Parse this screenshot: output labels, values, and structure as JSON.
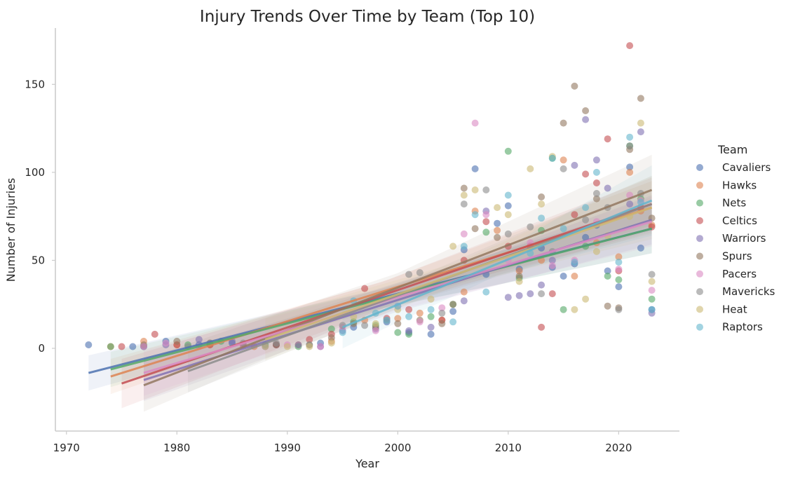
{
  "chart_data": {
    "type": "scatter",
    "title": "Injury Trends Over Time by Team (Top 10)",
    "xlabel": "Year",
    "ylabel": "Number of Injuries",
    "xlim": [
      1969,
      2025.5
    ],
    "ylim": [
      -47,
      182
    ],
    "x_ticks": [
      1970,
      1980,
      1990,
      2000,
      2010,
      2020
    ],
    "y_ticks": [
      0,
      50,
      100,
      150
    ],
    "grid": false,
    "legend_title": "Team",
    "legend_placement": "right",
    "series": [
      {
        "name": "Cavaliers",
        "color": "#4c72b0",
        "fit": {
          "x": [
            1972,
            2023
          ],
          "y": [
            -14,
            68
          ],
          "ci": [
            10,
            14
          ]
        },
        "points": [
          [
            1972,
            2
          ],
          [
            1976,
            1
          ],
          [
            1979,
            4
          ],
          [
            1982,
            2
          ],
          [
            1985,
            3
          ],
          [
            1989,
            2
          ],
          [
            1993,
            3
          ],
          [
            1996,
            12
          ],
          [
            1999,
            15
          ],
          [
            2001,
            9
          ],
          [
            2003,
            8
          ],
          [
            2005,
            21
          ],
          [
            2006,
            56
          ],
          [
            2007,
            102
          ],
          [
            2008,
            42
          ],
          [
            2009,
            71
          ],
          [
            2010,
            81
          ],
          [
            2011,
            45
          ],
          [
            2013,
            57
          ],
          [
            2014,
            46
          ],
          [
            2015,
            41
          ],
          [
            2016,
            48
          ],
          [
            2017,
            63
          ],
          [
            2018,
            70
          ],
          [
            2019,
            44
          ],
          [
            2020,
            35
          ],
          [
            2021,
            103
          ],
          [
            2022,
            57
          ],
          [
            2023,
            22
          ]
        ]
      },
      {
        "name": "Hawks",
        "color": "#dd8452",
        "fit": {
          "x": [
            1974,
            2023
          ],
          "y": [
            -16,
            80
          ],
          "ci": [
            10,
            15
          ]
        },
        "points": [
          [
            1974,
            1
          ],
          [
            1977,
            4
          ],
          [
            1980,
            2
          ],
          [
            1983,
            2
          ],
          [
            1987,
            1
          ],
          [
            1991,
            2
          ],
          [
            1994,
            4
          ],
          [
            1997,
            16
          ],
          [
            2000,
            17
          ],
          [
            2002,
            20
          ],
          [
            2004,
            16
          ],
          [
            2006,
            32
          ],
          [
            2007,
            78
          ],
          [
            2009,
            67
          ],
          [
            2011,
            44
          ],
          [
            2013,
            50
          ],
          [
            2015,
            107
          ],
          [
            2016,
            41
          ],
          [
            2018,
            60
          ],
          [
            2020,
            52
          ],
          [
            2021,
            100
          ],
          [
            2022,
            78
          ],
          [
            2023,
            70
          ]
        ]
      },
      {
        "name": "Nets",
        "color": "#55a868",
        "fit": {
          "x": [
            1974,
            2023
          ],
          "y": [
            -12,
            68
          ],
          "ci": [
            10,
            14
          ]
        },
        "points": [
          [
            1974,
            1
          ],
          [
            1977,
            1
          ],
          [
            1981,
            2
          ],
          [
            1984,
            4
          ],
          [
            1988,
            2
          ],
          [
            1991,
            1
          ],
          [
            1994,
            11
          ],
          [
            1996,
            15
          ],
          [
            1998,
            13
          ],
          [
            2000,
            9
          ],
          [
            2001,
            8
          ],
          [
            2003,
            18
          ],
          [
            2005,
            25
          ],
          [
            2008,
            66
          ],
          [
            2010,
            112
          ],
          [
            2011,
            40
          ],
          [
            2013,
            67
          ],
          [
            2014,
            108
          ],
          [
            2015,
            22
          ],
          [
            2017,
            58
          ],
          [
            2019,
            41
          ],
          [
            2020,
            39
          ],
          [
            2021,
            115
          ],
          [
            2022,
            85
          ],
          [
            2023,
            28
          ]
        ]
      },
      {
        "name": "Celtics",
        "color": "#c44e52",
        "fit": {
          "x": [
            1975,
            2023
          ],
          "y": [
            -20,
            82
          ],
          "ci": [
            14,
            15
          ]
        },
        "points": [
          [
            1975,
            1
          ],
          [
            1978,
            8
          ],
          [
            1980,
            2
          ],
          [
            1983,
            2
          ],
          [
            1986,
            2
          ],
          [
            1989,
            2
          ],
          [
            1992,
            5
          ],
          [
            1994,
            8
          ],
          [
            1997,
            34
          ],
          [
            1999,
            17
          ],
          [
            2001,
            22
          ],
          [
            2004,
            16
          ],
          [
            2006,
            50
          ],
          [
            2008,
            72
          ],
          [
            2010,
            58
          ],
          [
            2012,
            58
          ],
          [
            2013,
            12
          ],
          [
            2014,
            31
          ],
          [
            2016,
            76
          ],
          [
            2017,
            99
          ],
          [
            2018,
            94
          ],
          [
            2019,
            119
          ],
          [
            2020,
            44
          ],
          [
            2021,
            172
          ],
          [
            2022,
            80
          ],
          [
            2023,
            69
          ]
        ]
      },
      {
        "name": "Warriors",
        "color": "#8172b3",
        "fit": {
          "x": [
            1977,
            2023
          ],
          "y": [
            -18,
            73
          ],
          "ci": [
            12,
            14
          ]
        },
        "points": [
          [
            1977,
            1
          ],
          [
            1979,
            2
          ],
          [
            1982,
            5
          ],
          [
            1985,
            4
          ],
          [
            1988,
            1
          ],
          [
            1991,
            2
          ],
          [
            1993,
            1
          ],
          [
            1995,
            10
          ],
          [
            1998,
            11
          ],
          [
            2001,
            10
          ],
          [
            2003,
            12
          ],
          [
            2006,
            27
          ],
          [
            2008,
            78
          ],
          [
            2010,
            29
          ],
          [
            2011,
            30
          ],
          [
            2012,
            31
          ],
          [
            2013,
            36
          ],
          [
            2014,
            50
          ],
          [
            2016,
            104
          ],
          [
            2017,
            130
          ],
          [
            2018,
            107
          ],
          [
            2019,
            91
          ],
          [
            2021,
            82
          ],
          [
            2022,
            123
          ],
          [
            2023,
            20
          ]
        ]
      },
      {
        "name": "Spurs",
        "color": "#937860",
        "fit": {
          "x": [
            1977,
            2023
          ],
          "y": [
            -21,
            90
          ],
          "ci": [
            15,
            20
          ]
        },
        "points": [
          [
            1977,
            2
          ],
          [
            1980,
            4
          ],
          [
            1983,
            3
          ],
          [
            1986,
            2
          ],
          [
            1989,
            2
          ],
          [
            1992,
            2
          ],
          [
            1994,
            6
          ],
          [
            1996,
            14
          ],
          [
            1998,
            12
          ],
          [
            2000,
            14
          ],
          [
            2002,
            16
          ],
          [
            2004,
            14
          ],
          [
            2005,
            25
          ],
          [
            2006,
            91
          ],
          [
            2007,
            68
          ],
          [
            2009,
            63
          ],
          [
            2011,
            41
          ],
          [
            2013,
            86
          ],
          [
            2015,
            128
          ],
          [
            2016,
            149
          ],
          [
            2017,
            135
          ],
          [
            2018,
            85
          ],
          [
            2019,
            24
          ],
          [
            2020,
            23
          ],
          [
            2021,
            113
          ],
          [
            2022,
            142
          ],
          [
            2023,
            74
          ]
        ]
      },
      {
        "name": "Pacers",
        "color": "#da8bc3",
        "fit": {
          "x": [
            1977,
            2023
          ],
          "y": [
            -14,
            72
          ],
          "ci": [
            13,
            14
          ]
        },
        "points": [
          [
            1977,
            1
          ],
          [
            1979,
            3
          ],
          [
            1982,
            1
          ],
          [
            1986,
            2
          ],
          [
            1990,
            2
          ],
          [
            1993,
            1
          ],
          [
            1995,
            12
          ],
          [
            1998,
            10
          ],
          [
            2000,
            24
          ],
          [
            2002,
            15
          ],
          [
            2004,
            23
          ],
          [
            2006,
            65
          ],
          [
            2007,
            128
          ],
          [
            2008,
            76
          ],
          [
            2010,
            50
          ],
          [
            2012,
            60
          ],
          [
            2014,
            47
          ],
          [
            2016,
            50
          ],
          [
            2018,
            72
          ],
          [
            2020,
            45
          ],
          [
            2021,
            87
          ],
          [
            2022,
            84
          ],
          [
            2023,
            33
          ]
        ]
      },
      {
        "name": "Mavericks",
        "color": "#8c8c8c",
        "fit": {
          "x": [
            1981,
            2023
          ],
          "y": [
            -13,
            82
          ],
          "ci": [
            12,
            16
          ]
        },
        "points": [
          [
            1981,
            1
          ],
          [
            1983,
            3
          ],
          [
            1986,
            3
          ],
          [
            1989,
            3
          ],
          [
            1992,
            2
          ],
          [
            1995,
            13
          ],
          [
            1997,
            13
          ],
          [
            1999,
            16
          ],
          [
            2001,
            42
          ],
          [
            2002,
            43
          ],
          [
            2004,
            20
          ],
          [
            2006,
            82
          ],
          [
            2008,
            90
          ],
          [
            2010,
            65
          ],
          [
            2012,
            69
          ],
          [
            2013,
            31
          ],
          [
            2014,
            55
          ],
          [
            2015,
            102
          ],
          [
            2017,
            73
          ],
          [
            2018,
            88
          ],
          [
            2019,
            80
          ],
          [
            2020,
            22
          ],
          [
            2021,
            115
          ],
          [
            2022,
            88
          ],
          [
            2023,
            42
          ]
        ]
      },
      {
        "name": "Heat",
        "color": "#ccb974",
        "fit": {
          "x": [
            1988,
            2023
          ],
          "y": [
            5,
            80
          ],
          "ci": [
            12,
            18
          ]
        },
        "points": [
          [
            1988,
            1
          ],
          [
            1990,
            1
          ],
          [
            1992,
            1
          ],
          [
            1994,
            3
          ],
          [
            1996,
            18
          ],
          [
            1998,
            14
          ],
          [
            2000,
            22
          ],
          [
            2003,
            28
          ],
          [
            2005,
            58
          ],
          [
            2006,
            87
          ],
          [
            2007,
            90
          ],
          [
            2009,
            80
          ],
          [
            2010,
            76
          ],
          [
            2011,
            38
          ],
          [
            2012,
            102
          ],
          [
            2013,
            82
          ],
          [
            2014,
            109
          ],
          [
            2016,
            22
          ],
          [
            2017,
            28
          ],
          [
            2018,
            55
          ],
          [
            2019,
            64
          ],
          [
            2021,
            75
          ],
          [
            2022,
            128
          ],
          [
            2023,
            38
          ]
        ]
      },
      {
        "name": "Raptors",
        "color": "#64b5cd",
        "fit": {
          "x": [
            1995,
            2023
          ],
          "y": [
            12,
            84
          ],
          "ci": [
            12,
            20
          ]
        },
        "points": [
          [
            1995,
            9
          ],
          [
            1996,
            27
          ],
          [
            1998,
            20
          ],
          [
            1999,
            16
          ],
          [
            2000,
            24
          ],
          [
            2001,
            18
          ],
          [
            2003,
            22
          ],
          [
            2005,
            15
          ],
          [
            2006,
            58
          ],
          [
            2007,
            76
          ],
          [
            2008,
            32
          ],
          [
            2010,
            87
          ],
          [
            2012,
            54
          ],
          [
            2013,
            74
          ],
          [
            2014,
            108
          ],
          [
            2015,
            68
          ],
          [
            2016,
            49
          ],
          [
            2017,
            80
          ],
          [
            2018,
            100
          ],
          [
            2020,
            49
          ],
          [
            2021,
            120
          ],
          [
            2022,
            83
          ],
          [
            2023,
            22
          ]
        ]
      }
    ]
  }
}
